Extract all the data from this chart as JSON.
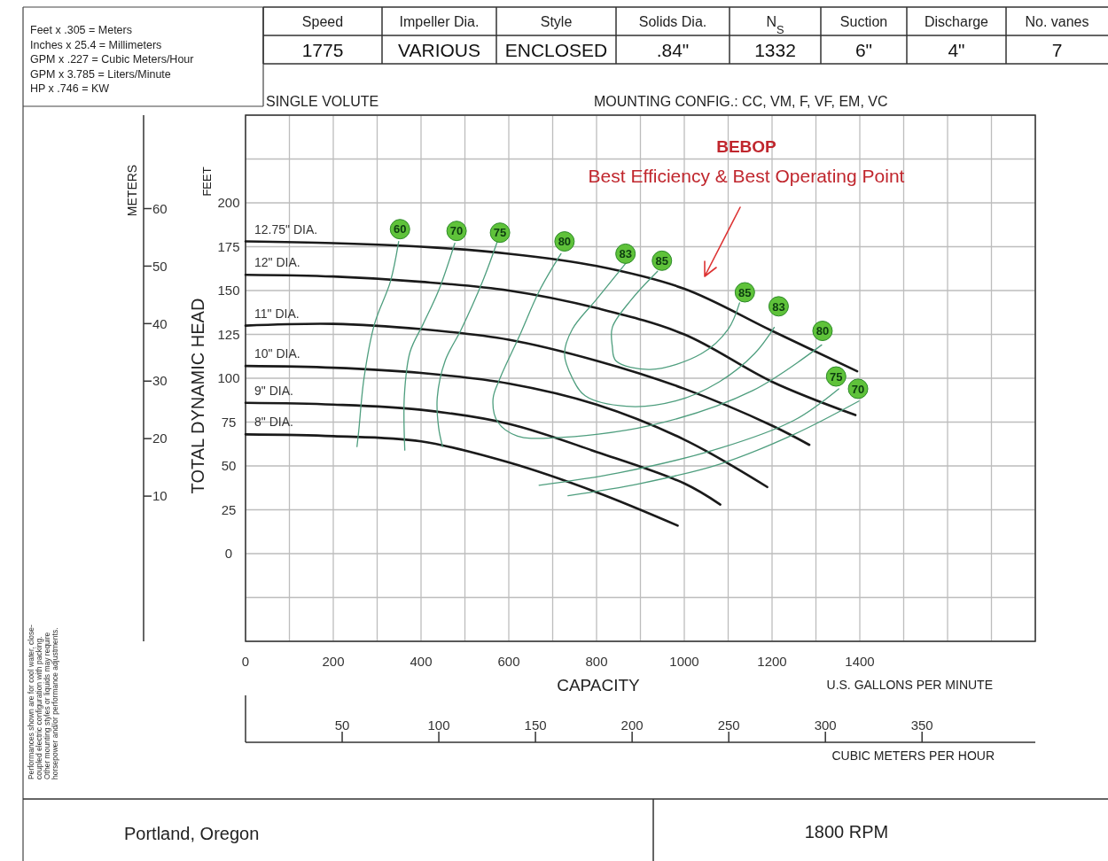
{
  "chart_data": {
    "type": "line",
    "xlabel": "CAPACITY",
    "ylabel": "TOTAL DYNAMIC HEAD",
    "y2label": "METERS",
    "x2label": "CUBIC METERS PER HOUR",
    "xlim": [
      0,
      1800
    ],
    "ylim": [
      -50,
      250
    ],
    "y2lim": [
      -15.25,
      76.25
    ],
    "x2lim": [
      0,
      408.6
    ],
    "xticks": [
      0,
      {
        "value": 100,
        "label": null
      },
      200,
      {
        "value": 300,
        "label": null
      },
      400,
      {
        "value": 500,
        "label": null
      },
      600,
      {
        "value": 700,
        "label": null
      },
      800,
      {
        "value": 900,
        "label": null
      },
      1000,
      {
        "value": 1100,
        "label": null
      },
      1200,
      {
        "value": 1300,
        "label": null
      },
      1400,
      {
        "value": 1500,
        "label": null
      },
      {
        "value": 1600,
        "label": null
      },
      {
        "value": 1700,
        "label": null
      },
      {
        "value": 1800,
        "label": null
      }
    ],
    "yticks": [
      {
        "value": -50,
        "label": null
      },
      {
        "value": -25,
        "label": null
      },
      0,
      25,
      50,
      75,
      100,
      125,
      150,
      175,
      200,
      {
        "value": 225,
        "label": null
      },
      {
        "value": 250,
        "label": null
      }
    ],
    "y2ticks": [
      10,
      20,
      30,
      40,
      50,
      60
    ],
    "x2ticks": [
      50,
      100,
      150,
      200,
      250,
      300,
      350
    ],
    "grid": true,
    "series": [
      {
        "name": "12.75\" DIA.",
        "color": "#1a1a1a",
        "x": [
          0,
          200,
          400,
          600,
          800,
          1000,
          1200,
          1394
        ],
        "values": [
          178,
          177,
          175,
          171,
          164,
          151,
          127,
          104
        ]
      },
      {
        "name": "12\" DIA.",
        "color": "#1a1a1a",
        "x": [
          0,
          200,
          400,
          600,
          800,
          1000,
          1200,
          1390
        ],
        "values": [
          159,
          158,
          155,
          150,
          140,
          125,
          98,
          79
        ]
      },
      {
        "name": "11\" DIA.",
        "color": "#1a1a1a",
        "x": [
          0,
          200,
          400,
          600,
          800,
          1000,
          1200,
          1285
        ],
        "values": [
          130,
          131,
          128,
          122,
          110,
          94,
          73,
          62
        ]
      },
      {
        "name": "10\" DIA.",
        "color": "#1a1a1a",
        "x": [
          0,
          200,
          400,
          600,
          800,
          1000,
          1189
        ],
        "values": [
          107,
          106,
          103,
          97,
          85,
          65,
          38
        ]
      },
      {
        "name": "9\" DIA.",
        "color": "#1a1a1a",
        "x": [
          0,
          200,
          400,
          600,
          800,
          1000,
          1082
        ],
        "values": [
          86,
          85,
          82,
          74,
          58,
          40,
          28
        ]
      },
      {
        "name": "8\" DIA.",
        "color": "#1a1a1a",
        "x": [
          0,
          200,
          400,
          600,
          800,
          985
        ],
        "values": [
          68,
          67,
          64,
          52,
          35,
          16
        ]
      },
      {
        "color": "#4e9e7e",
        "x": [
          349,
          330,
          294,
          270,
          258,
          254
        ],
        "values": [
          178,
          155,
          131,
          100,
          70,
          61
        ]
      },
      {
        "color": "#4e9e7e",
        "x": [
          477,
          440,
          405,
          375,
          362,
          363,
          null,
          735,
          900,
          1080,
          1250,
          1398
        ],
        "values": [
          177,
          150,
          131,
          115,
          90,
          59,
          null,
          33,
          40,
          51,
          68,
          87
        ]
      },
      {
        "color": "#4e9e7e",
        "x": [
          574,
          540,
          492,
          455,
          437,
          440,
          449,
          null,
          669,
          850,
          1080,
          1250,
          1352
        ],
        "values": [
          178,
          155,
          128,
          110,
          89,
          72,
          61,
          null,
          39,
          46,
          60,
          76,
          94
        ]
      },
      {
        "color": "#4e9e7e",
        "x": [
          719,
          670,
          624,
          580,
          564,
          575,
          620,
          700,
          922,
          1156,
          1313
        ],
        "values": [
          171,
          150,
          124,
          100,
          88,
          75,
          67,
          66,
          73,
          93,
          119
        ]
      },
      {
        "color": "#4e9e7e",
        "x": [
          868,
          800,
          745,
          727,
          745,
          774,
          868,
          980,
          1080,
          1160,
          1205
        ],
        "values": [
          166,
          145,
          128,
          114,
          100,
          90,
          84,
          87,
          98,
          114,
          129
        ]
      },
      {
        "color": "#4e9e7e",
        "x": [
          939,
          880,
          836,
          836,
          844,
          922,
          1039,
          1100,
          1126
        ],
        "values": [
          161,
          145,
          129,
          118,
          110,
          105,
          114,
          128,
          143
        ]
      }
    ],
    "annotations": [
      "Feet x .305 = Meters",
      "Inches x 25.4 = Millimeters",
      "GPM x .227 = Cubic Meters/Hour",
      "GPM x 3.785 = Liters/Minute",
      "HP x .746 = KW",
      "Speed",
      "Impeller Dia.",
      "Style",
      "Solids Dia.",
      "N$_{S}$",
      "Suction",
      "Discharge",
      "No. vanes",
      "1775",
      "VARIOUS",
      "ENCLOSED",
      ".84\"",
      "1332",
      "6\"",
      "4\"",
      "7",
      "SINGLE VOLUTE",
      "MOUNTING CONFIG.:  CC,  VM,  F,  VF,  EM,  VC",
      "FEET",
      "U.S. GALLONS PER MINUTE",
      "BEBOP",
      "Best Efficiency & Best Operating Point",
      "Performances shown are for cool water, close-\ncoupled electric configuration with packing.\nOther mounting styles or liquids may require\nhorsepower and/or performance adjustments.",
      "Portland, Oregon",
      "1800 RPM",
      {
        "text": "60",
        "x": 352,
        "y": 185
      },
      {
        "text": "70",
        "x": 481,
        "y": 184
      },
      {
        "text": "75",
        "x": 580,
        "y": 183
      },
      {
        "text": "80",
        "x": 727,
        "y": 178
      },
      {
        "text": "83",
        "x": 866,
        "y": 171
      },
      {
        "text": "85",
        "x": 949,
        "y": 167
      },
      {
        "text": "85",
        "x": 1138,
        "y": 149
      },
      {
        "text": "83",
        "x": 1215,
        "y": 141
      },
      {
        "text": "80",
        "x": 1315,
        "y": 127
      },
      {
        "text": "75",
        "x": 1346,
        "y": 101
      },
      {
        "text": "70",
        "x": 1396,
        "y": 94
      }
    ]
  }
}
